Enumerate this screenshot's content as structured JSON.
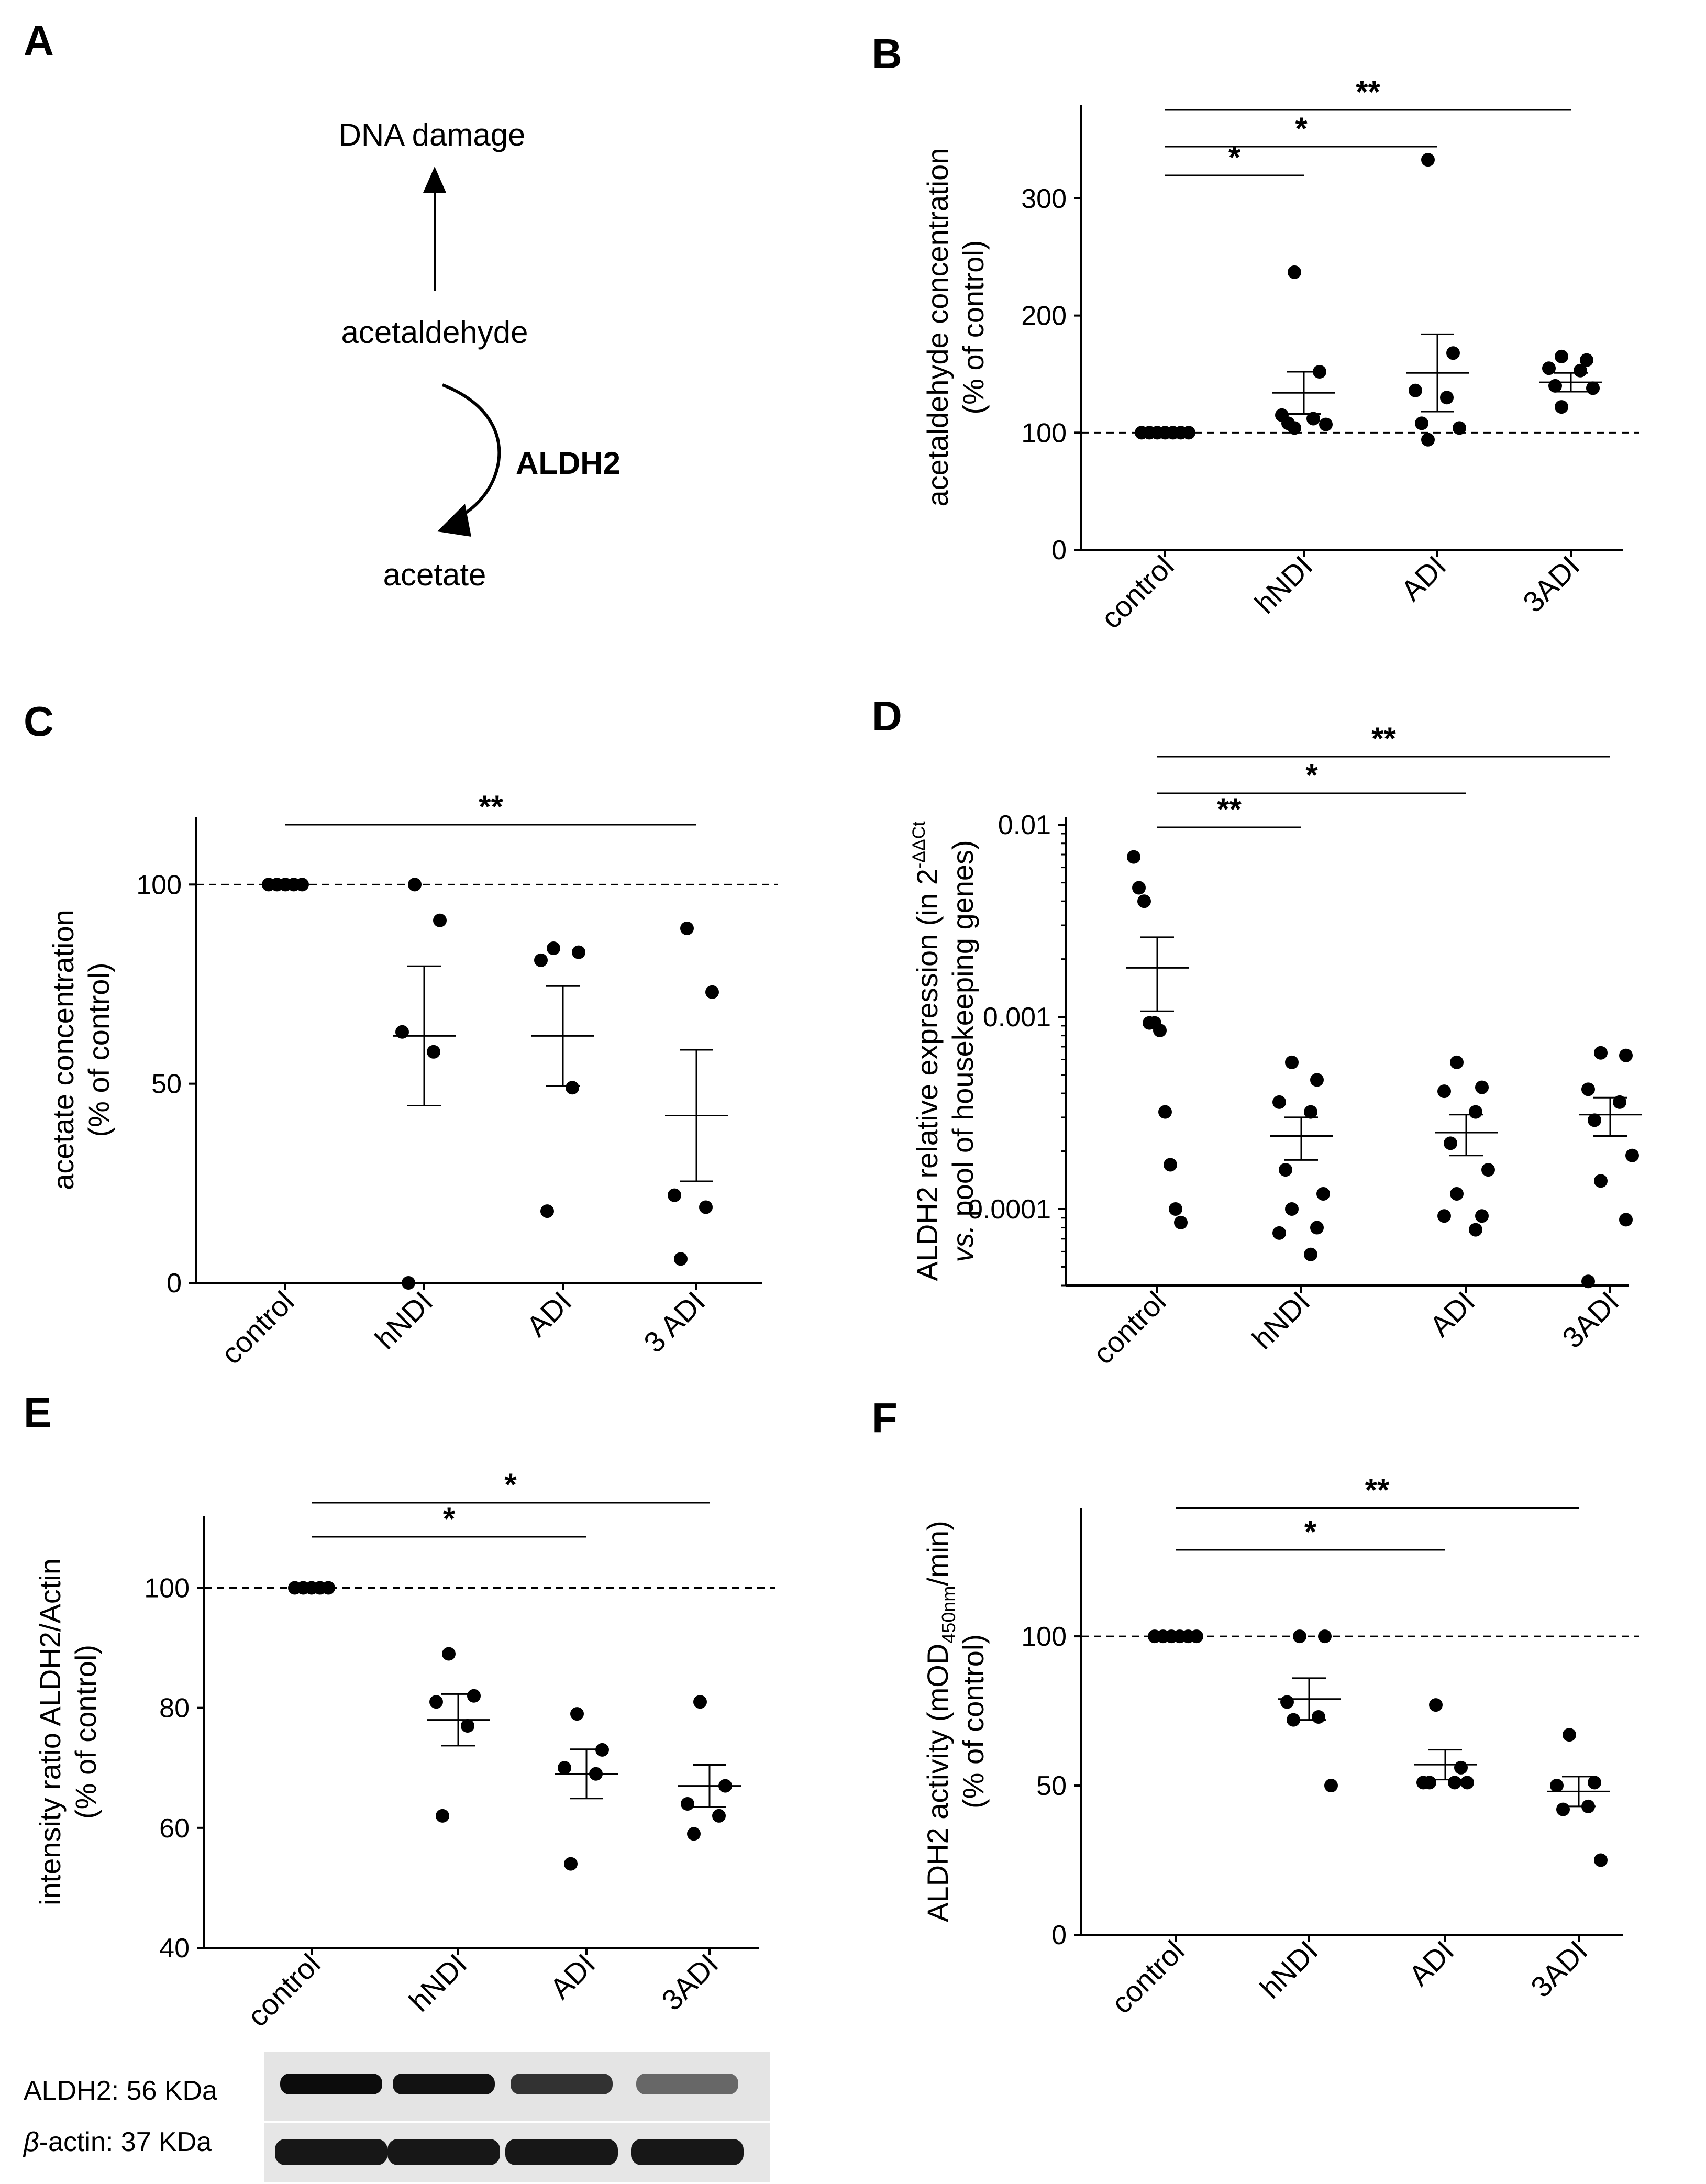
{
  "panel_a": {
    "letter": "A",
    "dna_damage": "DNA damage",
    "acetaldehyde": "acetaldehyde",
    "enzyme": "ALDH2",
    "acetate": "acetate"
  },
  "chart_data": [
    {
      "letter": "B",
      "type": "scatter",
      "ylabel": [
        "acetaldehyde concentration",
        "(% of control)"
      ],
      "categories": [
        "control",
        "hNDI",
        "ADI",
        "3ADI"
      ],
      "ylim": [
        0,
        380
      ],
      "yticks": [
        0,
        100,
        200,
        300
      ],
      "ref_line": 100,
      "points": [
        [
          100,
          100,
          100,
          100,
          100,
          100,
          100
        ],
        [
          237,
          152,
          115,
          112,
          108,
          107,
          104
        ],
        [
          333,
          168,
          136,
          130,
          108,
          104,
          94
        ],
        [
          165,
          162,
          155,
          153,
          140,
          138,
          122
        ]
      ],
      "mean": [
        100,
        134,
        151,
        143
      ],
      "sem": [
        0,
        18,
        33,
        8
      ],
      "sig": [
        {
          "from": 0,
          "to": 1,
          "label": "*"
        },
        {
          "from": 0,
          "to": 2,
          "label": "*"
        },
        {
          "from": 0,
          "to": 3,
          "label": "**"
        }
      ]
    },
    {
      "letter": "C",
      "type": "scatter",
      "ylabel": [
        "acetate concentration",
        "(% of control)"
      ],
      "categories": [
        "control",
        "hNDI",
        "ADI",
        "3 ADI"
      ],
      "ylim": [
        0,
        117
      ],
      "yticks": [
        0,
        50,
        100
      ],
      "ref_line": 100,
      "points": [
        [
          100,
          100,
          100,
          100,
          100
        ],
        [
          100,
          91,
          63,
          58,
          0
        ],
        [
          84,
          83,
          81,
          49,
          18
        ],
        [
          89,
          73,
          22,
          19,
          6
        ]
      ],
      "mean": [
        100,
        62,
        62,
        42
      ],
      "sem": [
        0,
        17.5,
        12.5,
        16.5
      ],
      "sig": [
        {
          "from": 0,
          "to": 3,
          "label": "**"
        }
      ]
    },
    {
      "letter": "D",
      "type": "scatter",
      "ylabel": [
        "ALDH2 relative expression (in 2",
        "vs. pool of housekeeping genes)"
      ],
      "ylabel_sup": "-ΔΔCt",
      "categories": [
        "control",
        "hNDI",
        "ADI",
        "3ADI"
      ],
      "yscale": "log",
      "ylim": [
        4e-05,
        0.011
      ],
      "yticks": [
        0.0001,
        0.001,
        0.01
      ],
      "yticklabels": [
        "0.0001",
        "0.001",
        "0.01"
      ],
      "points": [
        [
          0.0068,
          0.0047,
          0.004,
          0.00093,
          0.00093,
          0.00085,
          0.00032,
          0.00017,
          0.0001,
          8.5e-05
        ],
        [
          0.00058,
          0.00047,
          0.00036,
          0.00032,
          0.00016,
          0.00012,
          0.0001,
          8e-05,
          7.5e-05,
          5.8e-05
        ],
        [
          0.00058,
          0.00043,
          0.00041,
          0.00032,
          0.00022,
          0.00016,
          0.00012,
          9.2e-05,
          9.2e-05,
          7.8e-05
        ],
        [
          0.00065,
          0.00063,
          0.00042,
          0.00036,
          0.00029,
          0.00019,
          0.00014,
          8.8e-05,
          4.2e-05
        ]
      ],
      "mean": [
        0.0018,
        0.00024,
        0.00025,
        0.00031
      ],
      "err_low": [
        0.00107,
        0.00018,
        0.00019,
        0.00024
      ],
      "err_high": [
        0.0026,
        0.0003,
        0.00031,
        0.00038
      ],
      "sig": [
        {
          "from": 0,
          "to": 1,
          "label": "**"
        },
        {
          "from": 0,
          "to": 2,
          "label": "*"
        },
        {
          "from": 0,
          "to": 3,
          "label": "**"
        }
      ]
    },
    {
      "letter": "E",
      "type": "scatter",
      "ylabel": [
        "intensity ratio ALDH2/Actin",
        "(% of control)"
      ],
      "categories": [
        "control",
        "hNDI",
        "ADI",
        "3ADI"
      ],
      "ylim": [
        40,
        112
      ],
      "yticks": [
        40,
        60,
        80,
        100
      ],
      "ref_line": 100,
      "points": [
        [
          100,
          100,
          100,
          100,
          100
        ],
        [
          89,
          82,
          81,
          77,
          62
        ],
        [
          79,
          73,
          70,
          69,
          54
        ],
        [
          81,
          67,
          64,
          62,
          59
        ]
      ],
      "mean": [
        100,
        78,
        69,
        67
      ],
      "sem": [
        0,
        4.3,
        4.1,
        3.5
      ],
      "sig": [
        {
          "from": 0,
          "to": 2,
          "label": "*"
        },
        {
          "from": 0,
          "to": 3,
          "label": "*"
        }
      ]
    },
    {
      "letter": "F",
      "type": "scatter",
      "ylabel": [
        "ALDH2 activity (mOD",
        "(% of control)"
      ],
      "ylabel_sub": "450nm",
      "ylabel_tail": "/min)",
      "categories": [
        "control",
        "hNDI",
        "ADI",
        "3ADI"
      ],
      "ylim": [
        0,
        143
      ],
      "yticks": [
        0,
        50,
        100
      ],
      "ref_line": 100,
      "points": [
        [
          100,
          100,
          100,
          100,
          100,
          100
        ],
        [
          100,
          100,
          78,
          73,
          72,
          50
        ],
        [
          77,
          56,
          51,
          51,
          51,
          51
        ],
        [
          67,
          51,
          50,
          43,
          42,
          25
        ]
      ],
      "mean": [
        100,
        79,
        57,
        48
      ],
      "sem": [
        0,
        7,
        5,
        5
      ],
      "sig": [
        {
          "from": 0,
          "to": 2,
          "label": "*"
        },
        {
          "from": 0,
          "to": 3,
          "label": "**"
        }
      ]
    }
  ],
  "blot": {
    "label_aldh2": "ALDH2: 56 KDa",
    "label_actin_symbol": "β",
    "label_actin": "-actin: 37 KDa",
    "aldh2_intensity": [
      0.95,
      0.92,
      0.78,
      0.55
    ],
    "actin_intensity": [
      1.0,
      1.0,
      1.0,
      1.0
    ]
  }
}
